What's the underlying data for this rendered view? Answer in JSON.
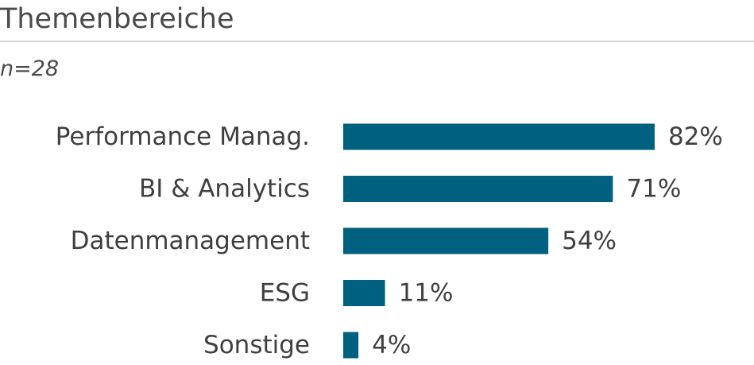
{
  "title": "Themenbereiche",
  "subtitle": "n=28",
  "colors": {
    "bar": "#00607f"
  },
  "chart_data": {
    "type": "bar",
    "orientation": "horizontal",
    "title": "",
    "xlabel": "",
    "ylabel": "",
    "categories": [
      "Performance Manag.",
      "BI & Analytics",
      "Datenmanagement",
      "ESG",
      "Sonstige"
    ],
    "values": [
      82,
      71,
      54,
      11,
      4
    ],
    "value_labels": [
      "82%",
      "71%",
      "54%",
      "11%",
      "4%"
    ],
    "xlim": [
      0,
      100
    ],
    "grid": false,
    "legend": "none"
  }
}
